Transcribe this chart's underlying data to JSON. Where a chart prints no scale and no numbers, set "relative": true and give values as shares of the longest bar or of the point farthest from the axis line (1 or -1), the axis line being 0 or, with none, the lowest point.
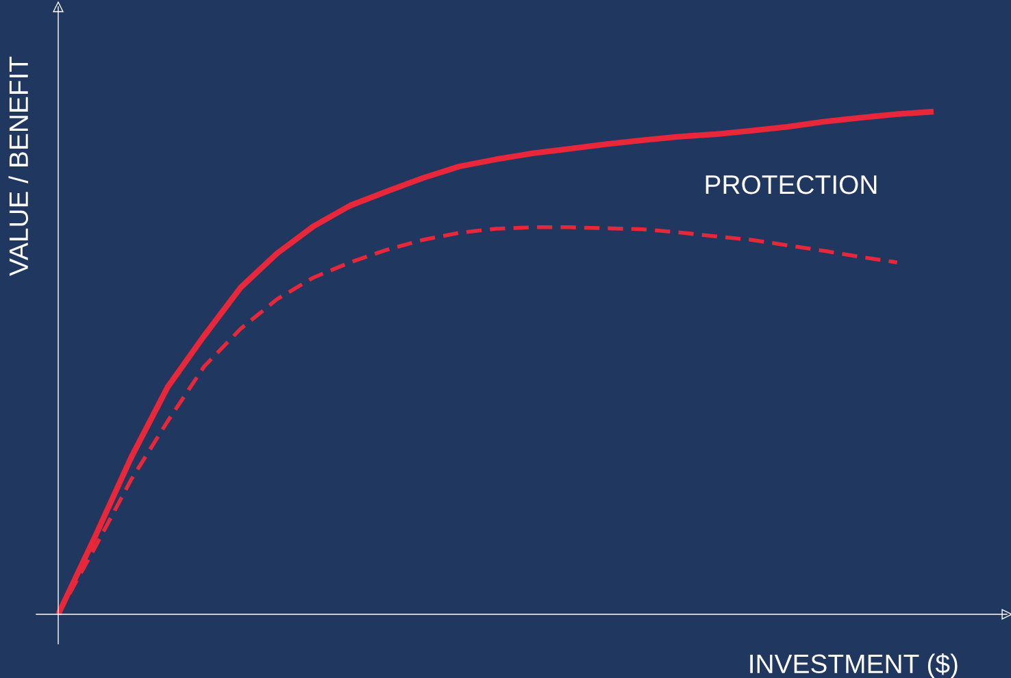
{
  "chart_data": {
    "type": "line",
    "relative": true,
    "xlabel": "INVESTMENT ($)",
    "ylabel": "VALUE / BENEFIT",
    "categories": [
      null,
      null,
      null,
      null,
      null,
      null,
      null,
      null,
      null,
      null,
      null,
      null,
      null,
      null,
      null,
      null,
      null,
      null,
      null,
      null,
      null,
      null,
      null,
      null,
      null
    ],
    "series": [
      {
        "color": "#e8283a",
        "line_style": "solid",
        "values": [
          0,
          0.153,
          0.312,
          0.452,
          0.554,
          0.65,
          0.718,
          0.772,
          0.813,
          0.841,
          0.868,
          0.891,
          0.905,
          0.917,
          0.926,
          0.935,
          0.943,
          0.95,
          0.955,
          0.962,
          0.97,
          0.98,
          0.988,
          0.995,
          1
        ]
      },
      {
        "color": "#e8283a",
        "line_style": "dashed",
        "values": [
          0,
          0.132,
          0.268,
          0.384,
          0.493,
          0.568,
          0.627,
          0.67,
          0.7,
          0.725,
          0.745,
          0.759,
          0.767,
          0.77,
          0.77,
          0.768,
          0.766,
          0.76,
          0.752,
          0.745,
          0.734,
          0.723,
          0.711,
          0.7,
          null
        ]
      }
    ],
    "annotations": [
      "PROTECTION"
    ]
  }
}
